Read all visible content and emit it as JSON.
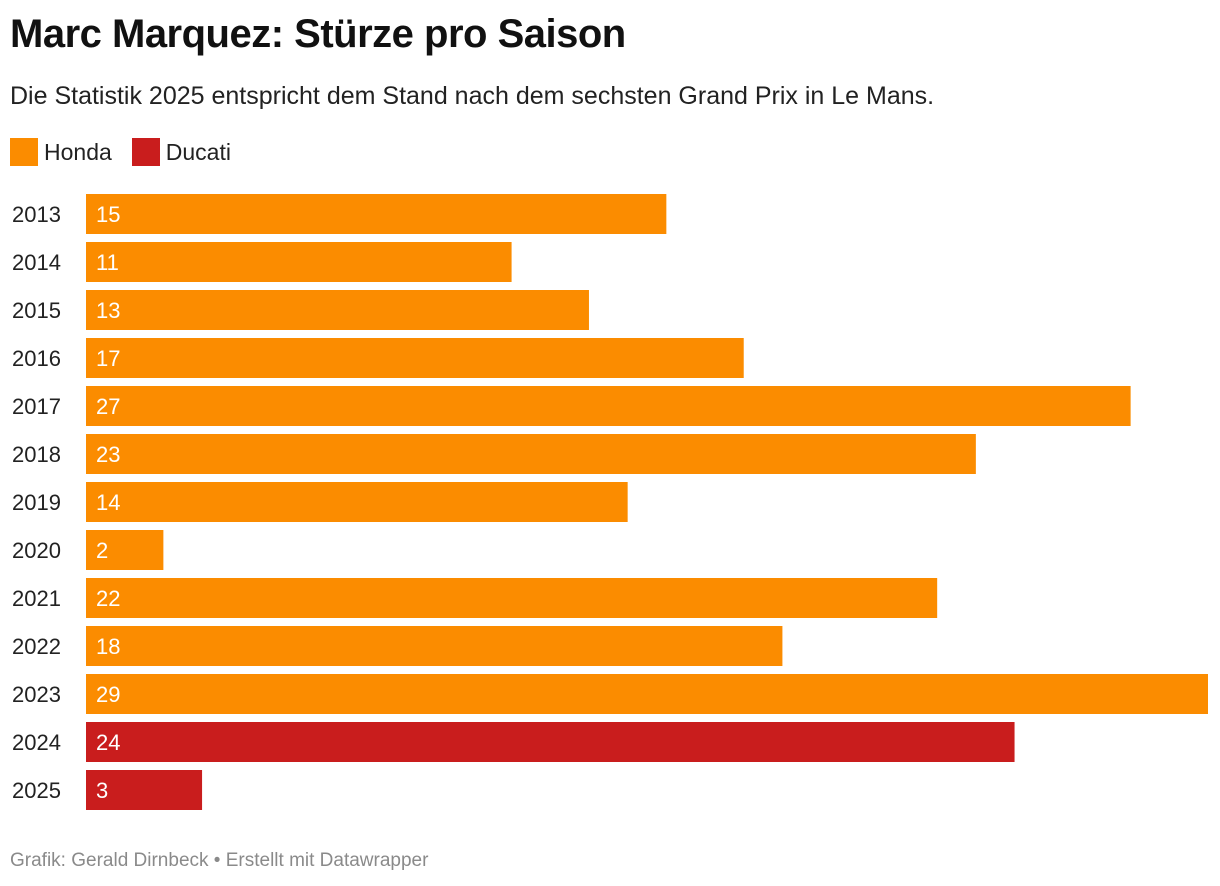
{
  "chart_data": {
    "type": "bar",
    "orientation": "horizontal",
    "title": "Marc Marquez: Stürze pro Saison",
    "subtitle": "Die Statistik 2025 entspricht dem Stand nach dem sechsten Grand Prix in Le Mans.",
    "categories": [
      "2013",
      "2014",
      "2015",
      "2016",
      "2017",
      "2018",
      "2019",
      "2020",
      "2021",
      "2022",
      "2023",
      "2024",
      "2025"
    ],
    "values": [
      15,
      11,
      13,
      17,
      27,
      23,
      14,
      2,
      22,
      18,
      29,
      24,
      3
    ],
    "groups": [
      "Honda",
      "Honda",
      "Honda",
      "Honda",
      "Honda",
      "Honda",
      "Honda",
      "Honda",
      "Honda",
      "Honda",
      "Honda",
      "Ducati",
      "Ducati"
    ],
    "legend": [
      {
        "name": "Honda",
        "color": "#fb8c00"
      },
      {
        "name": "Ducati",
        "color": "#c91d1d"
      }
    ],
    "legend_position": "top-left",
    "xlim": [
      0,
      29
    ],
    "grid": false,
    "data_labels": "inside-start"
  },
  "footer": {
    "credit": "Grafik: Gerald Dirnbeck • Erstellt mit Datawrapper"
  }
}
